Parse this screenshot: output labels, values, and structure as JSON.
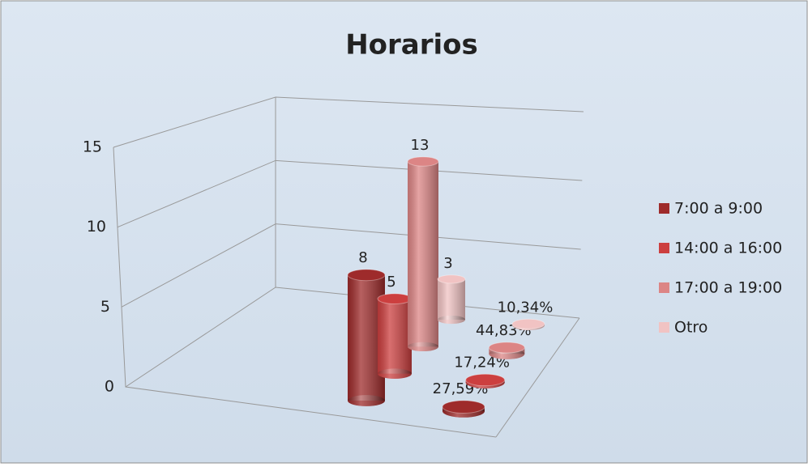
{
  "chart_data": {
    "type": "bar",
    "title": "Horarios",
    "ylim": [
      0,
      15
    ],
    "yticks": [
      0,
      5,
      10,
      15
    ],
    "grid": true,
    "series": [
      {
        "name": "7:00 a 9:00",
        "color": "#9e2b2b",
        "values": [
          8,
          0.2759
        ],
        "value_labels": [
          "8",
          "27,59%"
        ]
      },
      {
        "name": "14:00 a 16:00",
        "color": "#cc3f3f",
        "values": [
          5,
          0.1724
        ],
        "value_labels": [
          "5",
          "17,24%"
        ]
      },
      {
        "name": "17:00 a 19:00",
        "color": "#dc8585",
        "values": [
          13,
          0.4483
        ],
        "value_labels": [
          "13",
          "44,83%"
        ]
      },
      {
        "name": "Otro",
        "color": "#f1c3c3",
        "values": [
          3,
          0.1034
        ],
        "value_labels": [
          "3",
          "10,34%"
        ]
      }
    ]
  }
}
